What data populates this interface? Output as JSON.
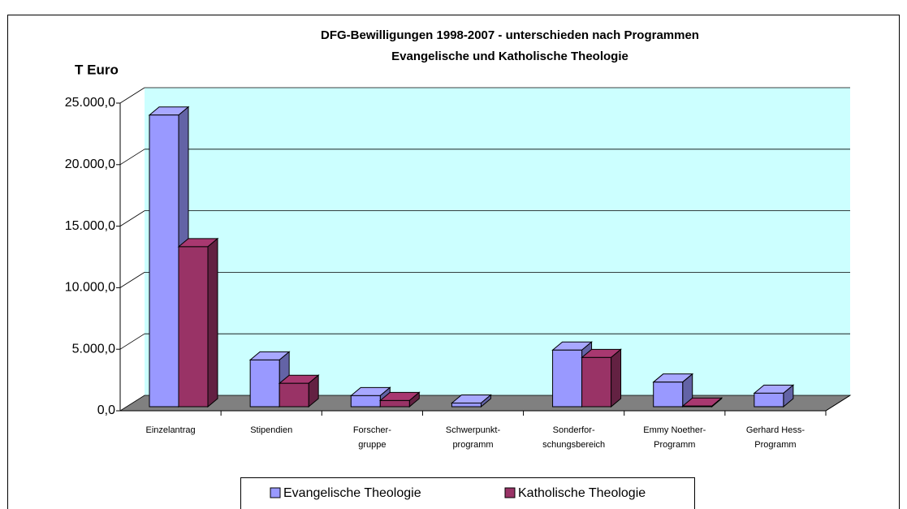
{
  "chart_data": {
    "type": "bar3d",
    "title": "DFG-Bewilligungen 1998-2007 - unterschieden nach Programmen",
    "subtitle": "Evangelische und Katholische Theologie",
    "y_label": "T Euro",
    "categories": [
      "Einzelantrag",
      "Stipendien",
      "Forscher-\ngruppe",
      "Schwerpunkt-\nprogramm",
      "Sonderfor-\nschungsbereich",
      "Emmy Noether-\nProgramm",
      "Gerhard Hess-\nProgramm"
    ],
    "series": [
      {
        "name": "Evangelische Theologie",
        "color": "#9999ff",
        "values": [
          23700,
          3800,
          900,
          300,
          4600,
          2000,
          1100
        ]
      },
      {
        "name": "Katholische Theologie",
        "color": "#993366",
        "values": [
          13000,
          1900,
          500,
          0,
          4000,
          50,
          0
        ]
      }
    ],
    "ylim": [
      0,
      25000
    ],
    "yticks": [
      {
        "value": 0,
        "label": "0,0"
      },
      {
        "value": 5000,
        "label": "5.000,0"
      },
      {
        "value": 10000,
        "label": "10.000,0"
      },
      {
        "value": 15000,
        "label": "15.000,0"
      },
      {
        "value": 20000,
        "label": "20.000,0"
      },
      {
        "value": 25000,
        "label": "25.000,0"
      }
    ],
    "grid": true,
    "wall_color": "#ccffff",
    "floor_color": "#808080"
  }
}
